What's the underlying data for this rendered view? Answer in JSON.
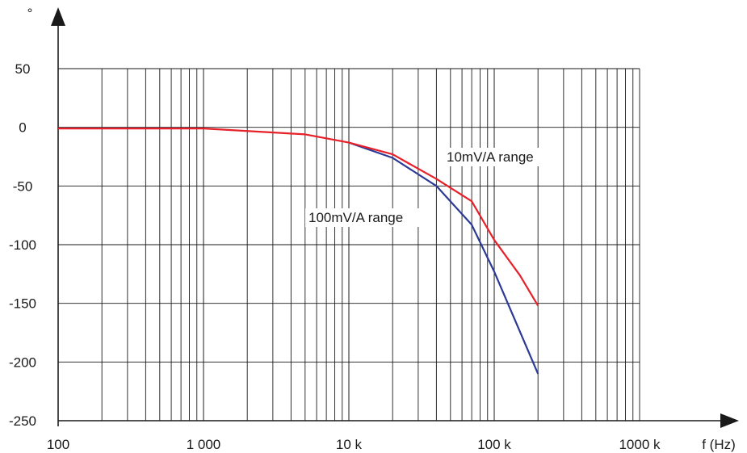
{
  "chart_data": {
    "type": "line",
    "x_scale": "log",
    "xlim": [
      100,
      1000000
    ],
    "ylim": [
      -250,
      50
    ],
    "grid": true,
    "ylabel": "°",
    "xlabel": "f (Hz)",
    "x_tick_values": [
      100,
      1000,
      10000,
      100000,
      1000000
    ],
    "x_tick_labels": [
      "100",
      "1 000",
      "10 k",
      "100 k",
      "1000 k"
    ],
    "y_tick_values": [
      50,
      0,
      -50,
      -100,
      -150,
      -200,
      -250
    ],
    "y_tick_labels": [
      "50",
      "0",
      "-50",
      "-100",
      "-150",
      "-200",
      "-250"
    ],
    "series": [
      {
        "name": "10mV/A range",
        "color": "#e8202a",
        "points": [
          {
            "x": 100,
            "y": -1
          },
          {
            "x": 1000,
            "y": -1
          },
          {
            "x": 5000,
            "y": -6
          },
          {
            "x": 10000,
            "y": -13
          },
          {
            "x": 20000,
            "y": -23
          },
          {
            "x": 40000,
            "y": -44
          },
          {
            "x": 70000,
            "y": -63
          },
          {
            "x": 100000,
            "y": -96
          },
          {
            "x": 150000,
            "y": -126
          },
          {
            "x": 200000,
            "y": -152
          }
        ]
      },
      {
        "name": "100mV/A range",
        "color": "#2b3a96",
        "points": [
          {
            "x": 10000,
            "y": -13
          },
          {
            "x": 20000,
            "y": -26
          },
          {
            "x": 40000,
            "y": -50
          },
          {
            "x": 70000,
            "y": -83
          },
          {
            "x": 100000,
            "y": -123
          },
          {
            "x": 200000,
            "y": -210
          }
        ]
      }
    ]
  }
}
